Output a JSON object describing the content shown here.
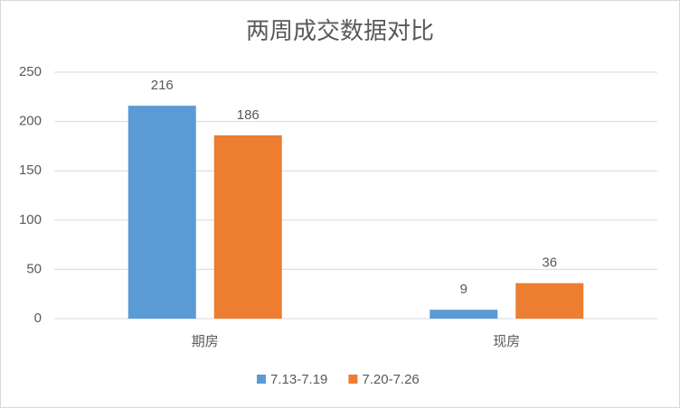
{
  "chart_data": {
    "type": "bar",
    "title": "两周成交数据对比",
    "categories": [
      "期房",
      "现房"
    ],
    "series": [
      {
        "name": "7.13-7.19",
        "color": "#5b9bd5",
        "values": [
          216,
          9
        ]
      },
      {
        "name": "7.20-7.26",
        "color": "#ed7d31",
        "values": [
          186,
          36
        ]
      }
    ],
    "ylim": [
      0,
      250
    ],
    "yticks": [
      0,
      50,
      100,
      150,
      200,
      250
    ],
    "grid": true,
    "legend": "bottom"
  }
}
